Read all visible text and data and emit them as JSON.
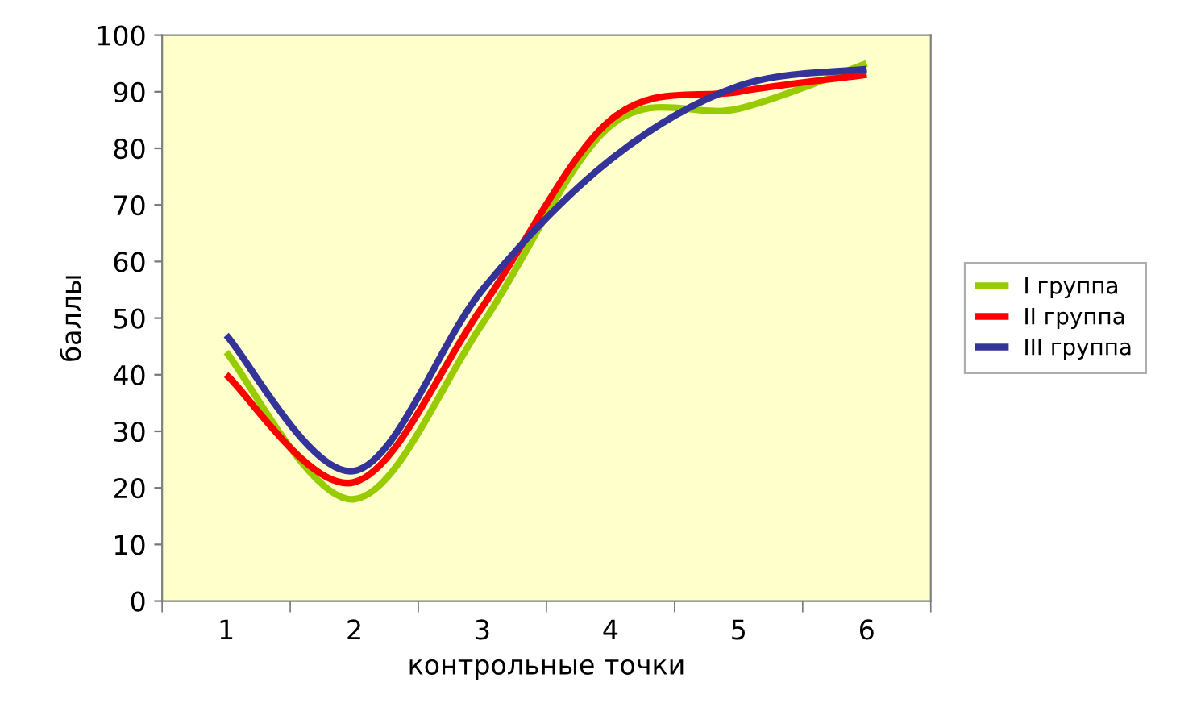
{
  "chart_data": {
    "type": "line",
    "xlabel": "контрольные точки",
    "ylabel": "баллы",
    "categories": [
      "1",
      "2",
      "3",
      "4",
      "5",
      "6"
    ],
    "series": [
      {
        "name": "I группа",
        "color": "#99cc00",
        "values": [
          44,
          18,
          49,
          84,
          87,
          95
        ]
      },
      {
        "name": "II группа",
        "color": "#ff0000",
        "values": [
          40,
          21,
          52,
          85,
          90,
          93
        ]
      },
      {
        "name": "III группа",
        "color": "#333399",
        "values": [
          47,
          23,
          55,
          78,
          91,
          94
        ]
      }
    ],
    "ylim": [
      0,
      100
    ],
    "yticks": [
      0,
      10,
      20,
      30,
      40,
      50,
      60,
      70,
      80,
      90,
      100
    ],
    "grid": false,
    "legend": "right",
    "marker": "none",
    "line_style": "solid"
  }
}
